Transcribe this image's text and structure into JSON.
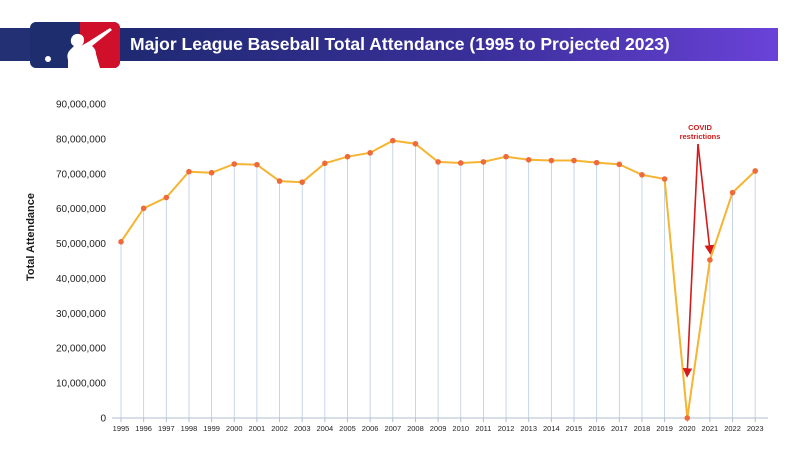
{
  "header": {
    "logo_name": "mlb-logo"
  },
  "colors": {
    "line": "#f5b431",
    "point": "#ef6a3a",
    "drop": "#b9cbe6",
    "axis": "#b0bccf",
    "annotation": "#d41a1a",
    "title_bg_start": "#1f2a72",
    "title_bg_end": "#6a42d8"
  },
  "chart_data": {
    "type": "line",
    "title": "Major League Baseball Total Attendance (1995 to Projected 2023)",
    "xlabel": "",
    "ylabel": "Total Attendance",
    "ylim": [
      0,
      90000000
    ],
    "yticks": [
      0,
      10000000,
      20000000,
      30000000,
      40000000,
      50000000,
      60000000,
      70000000,
      80000000,
      90000000
    ],
    "ytick_labels": [
      "0",
      "10,000,000",
      "20,000,000",
      "30,000,000",
      "40,000,000",
      "50,000,000",
      "60,000,000",
      "70,000,000",
      "80,000,000",
      "90,000,000"
    ],
    "categories": [
      "1995",
      "1996",
      "1997",
      "1998",
      "1999",
      "2000",
      "2001",
      "2002",
      "2003",
      "2004",
      "2005",
      "2006",
      "2007",
      "2008",
      "2009",
      "2010",
      "2011",
      "2012",
      "2013",
      "2014",
      "2015",
      "2016",
      "2017",
      "2018",
      "2019",
      "2020",
      "2021",
      "2022",
      "2023"
    ],
    "values": [
      50500000,
      60100000,
      63200000,
      70600000,
      70300000,
      72800000,
      72600000,
      67900000,
      67600000,
      73000000,
      74900000,
      76000000,
      79500000,
      78600000,
      73400000,
      73100000,
      73400000,
      74900000,
      74000000,
      73800000,
      73800000,
      73200000,
      72700000,
      69700000,
      68500000,
      0,
      45300000,
      64600000,
      70800000
    ],
    "grid": false,
    "legend": "none",
    "annotation": {
      "text_lines": [
        "COVID",
        "restrictions"
      ],
      "targets": [
        "2020",
        "2021"
      ]
    }
  }
}
